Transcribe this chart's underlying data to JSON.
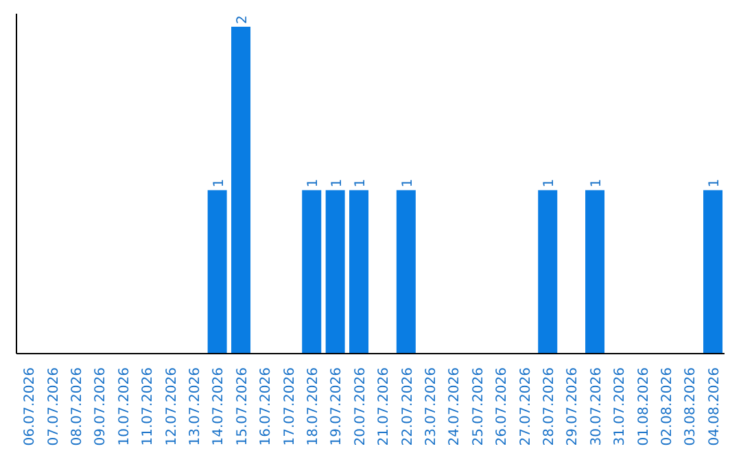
{
  "chart_data": {
    "type": "bar",
    "categories": [
      "06.07.2026",
      "07.07.2026",
      "08.07.2026",
      "09.07.2026",
      "10.07.2026",
      "11.07.2026",
      "12.07.2026",
      "13.07.2026",
      "14.07.2026",
      "15.07.2026",
      "16.07.2026",
      "17.07.2026",
      "18.07.2026",
      "19.07.2026",
      "20.07.2026",
      "21.07.2026",
      "22.07.2026",
      "23.07.2026",
      "24.07.2026",
      "25.07.2026",
      "26.07.2026",
      "27.07.2026",
      "28.07.2026",
      "29.07.2026",
      "30.07.2026",
      "31.07.2026",
      "01.08.2026",
      "02.08.2026",
      "03.08.2026",
      "04.08.2026"
    ],
    "values": [
      0,
      0,
      0,
      0,
      0,
      0,
      0,
      0,
      1,
      2,
      0,
      0,
      1,
      1,
      1,
      0,
      1,
      0,
      0,
      0,
      0,
      0,
      1,
      0,
      1,
      0,
      0,
      0,
      0,
      1
    ],
    "value_labels": [
      null,
      null,
      null,
      null,
      null,
      null,
      null,
      null,
      "1",
      "2",
      null,
      null,
      "1",
      "1",
      "1",
      null,
      "1",
      null,
      null,
      null,
      null,
      null,
      "1",
      null,
      "1",
      null,
      null,
      null,
      null,
      "1"
    ],
    "color": "#0a7de3",
    "tick_labels": "x"
  }
}
